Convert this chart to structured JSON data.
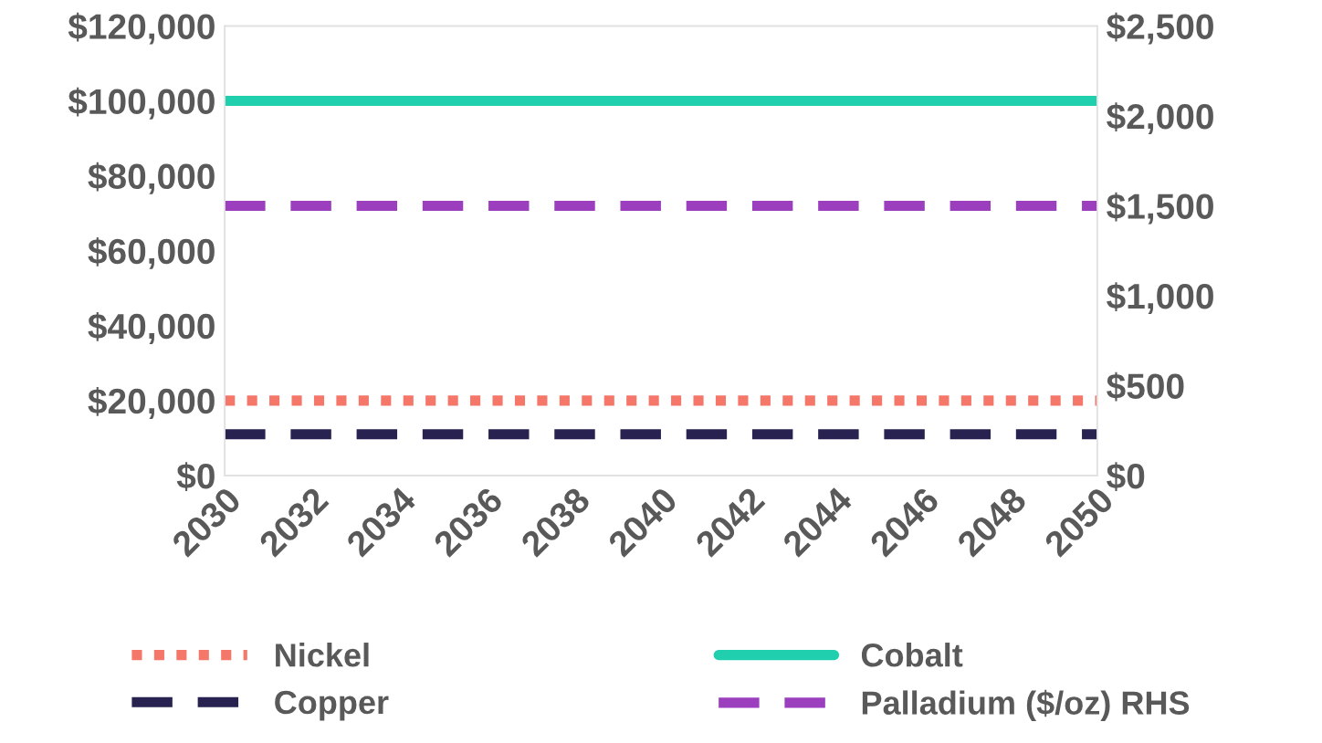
{
  "chart_data": {
    "type": "line",
    "categories": [
      "2030",
      null,
      "2032",
      null,
      "2034",
      null,
      "2036",
      null,
      "2038",
      null,
      "2040",
      null,
      "2042",
      null,
      "2044",
      null,
      "2046",
      null,
      "2048",
      null,
      "2050"
    ],
    "series": [
      {
        "name": "Nickel",
        "color": "#f4776a",
        "line_style": "dotted",
        "values": [
          20000,
          20000,
          20000,
          20000,
          20000,
          20000,
          20000,
          20000,
          20000,
          20000,
          20000,
          20000,
          20000,
          20000,
          20000,
          20000,
          20000,
          20000,
          20000,
          20000,
          20000
        ]
      },
      {
        "name": "Cobalt",
        "color": "#1fcfae",
        "line_style": "solid",
        "values": [
          100000,
          100000,
          100000,
          100000,
          100000,
          100000,
          100000,
          100000,
          100000,
          100000,
          100000,
          100000,
          100000,
          100000,
          100000,
          100000,
          100000,
          100000,
          100000,
          100000,
          100000
        ]
      },
      {
        "name": "Copper",
        "color": "#27224f",
        "line_style": "dashed",
        "values": [
          11000,
          11000,
          11000,
          11000,
          11000,
          11000,
          11000,
          11000,
          11000,
          11000,
          11000,
          11000,
          11000,
          11000,
          11000,
          11000,
          11000,
          11000,
          11000,
          11000,
          11000
        ]
      },
      {
        "name": "Palladium ($/oz) RHS",
        "color": "#9b3fbf",
        "line_style": "dashed",
        "axis": "y2",
        "values": [
          1500,
          1500,
          1500,
          1500,
          1500,
          1500,
          1500,
          1500,
          1500,
          1500,
          1500,
          1500,
          1500,
          1500,
          1500,
          1500,
          1500,
          1500,
          1500,
          1500,
          1500
        ]
      }
    ],
    "ylim": [
      0,
      120000
    ],
    "yticks": [
      {
        "value": 0,
        "label": "$0"
      },
      {
        "value": 20000,
        "label": "$20,000"
      },
      {
        "value": 40000,
        "label": "$40,000"
      },
      {
        "value": 60000,
        "label": "$60,000"
      },
      {
        "value": 80000,
        "label": "$80,000"
      },
      {
        "value": 100000,
        "label": "$100,000"
      },
      {
        "value": 120000,
        "label": "$120,000"
      }
    ],
    "y2lim": [
      0,
      2500
    ],
    "y2ticks": [
      {
        "value": 0,
        "label": "$0"
      },
      {
        "value": 500,
        "label": "$500"
      },
      {
        "value": 1000,
        "label": "$1,000"
      },
      {
        "value": 1500,
        "label": "$1,500"
      },
      {
        "value": 2000,
        "label": "$2,000"
      },
      {
        "value": 2500,
        "label": "$2,500"
      }
    ],
    "legend": "bottom",
    "grid": false,
    "marker": "none"
  }
}
